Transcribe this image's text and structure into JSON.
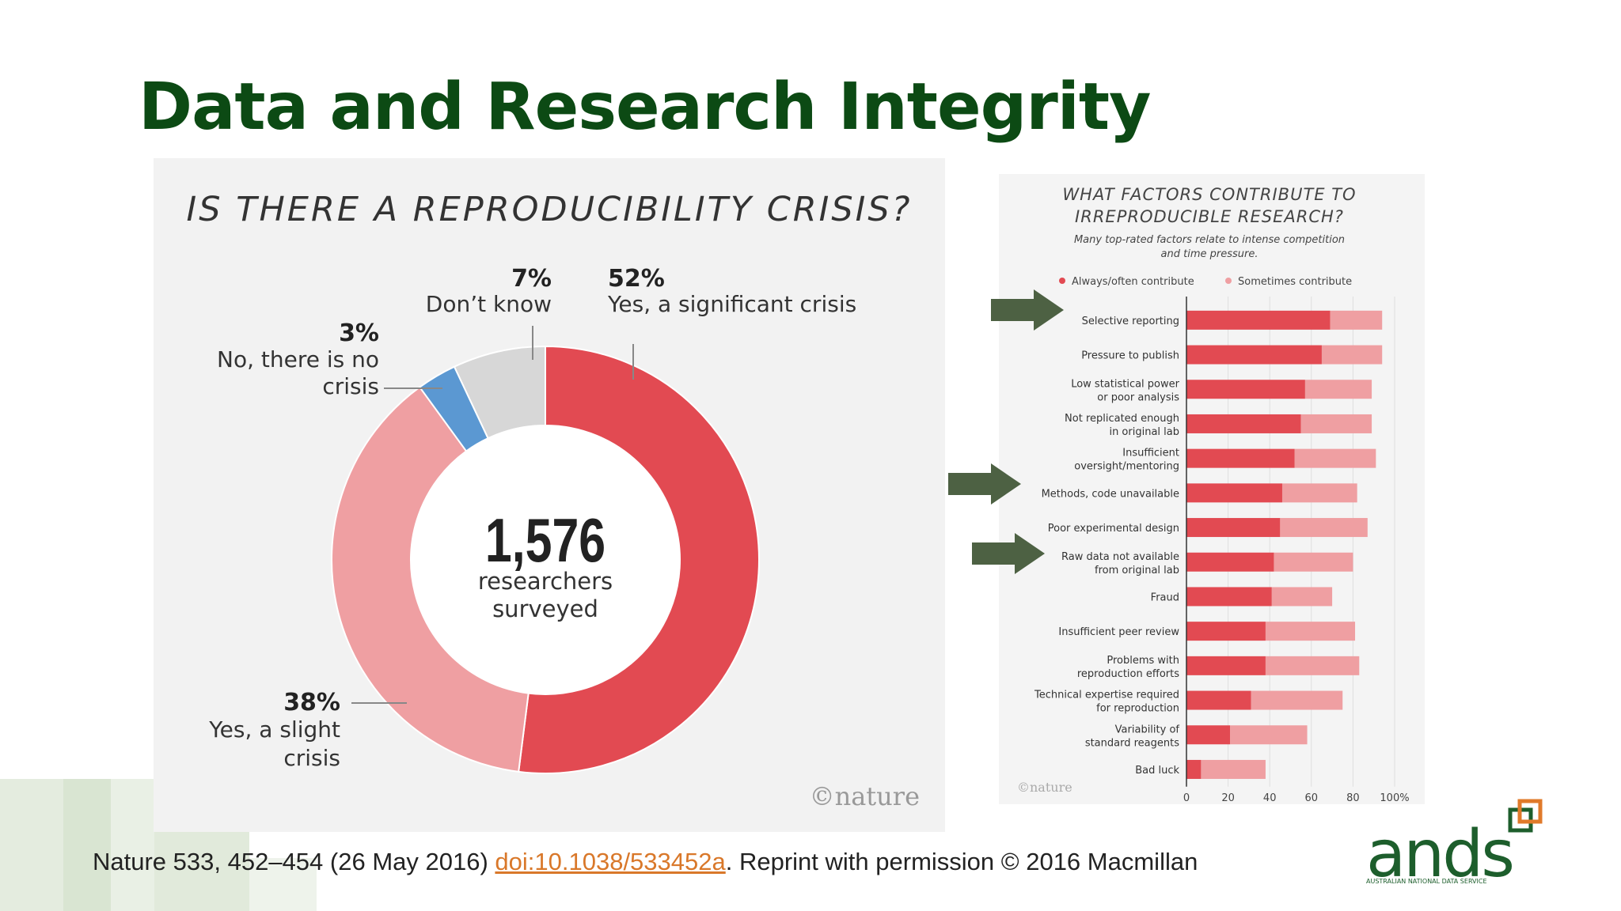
{
  "title": "Data and Research Integrity",
  "left_chart": {
    "heading": "IS THERE A REPRODUCIBILITY CRISIS?",
    "center_number": "1,576",
    "center_line1": "researchers",
    "center_line2": "surveyed",
    "brand": "©nature",
    "labels": {
      "significant_pct": "52%",
      "significant_text": "Yes, a significant crisis",
      "slight_pct": "38%",
      "slight_text1": "Yes, a slight",
      "slight_text2": "crisis",
      "no_pct": "3%",
      "no_text1": "No, there is no",
      "no_text2": "crisis",
      "dontknow_pct": "7%",
      "dontknow_text": "Don’t know"
    }
  },
  "right_chart": {
    "heading1": "WHAT FACTORS CONTRIBUTE TO",
    "heading2": "IRREPRODUCIBLE RESEARCH?",
    "subtitle1": "Many top-rated factors relate to intense competition",
    "subtitle2": "and time pressure.",
    "legend_always": "Always/often contribute",
    "legend_sometimes": "Sometimes contribute",
    "brand": "©nature",
    "factors": [
      {
        "line1": "Selective reporting",
        "line2": ""
      },
      {
        "line1": "Pressure to publish",
        "line2": ""
      },
      {
        "line1": "Low statistical power",
        "line2": "or poor analysis"
      },
      {
        "line1": "Not replicated enough",
        "line2": "in original lab"
      },
      {
        "line1": "Insufficient",
        "line2": "oversight/mentoring"
      },
      {
        "line1": "Methods, code unavailable",
        "line2": ""
      },
      {
        "line1": "Poor experimental design",
        "line2": ""
      },
      {
        "line1": "Raw data not available",
        "line2": "from original lab"
      },
      {
        "line1": "Fraud",
        "line2": ""
      },
      {
        "line1": "Insufficient peer review",
        "line2": ""
      },
      {
        "line1": "Problems with",
        "line2": "reproduction efforts"
      },
      {
        "line1": "Technical expertise required",
        "line2": "for reproduction"
      },
      {
        "line1": "Variability of",
        "line2": "standard reagents"
      },
      {
        "line1": "Bad luck",
        "line2": ""
      }
    ],
    "ticks": [
      "0",
      "20",
      "40",
      "60",
      "80",
      "100%"
    ]
  },
  "citation": {
    "before": "Nature 533, 452–454 (26 May 2016) ",
    "link": "doi:10.1038/533452a",
    "after": ".  Reprint with permission © 2016 Macmillan"
  },
  "logo": {
    "text": "ands",
    "tagline": "AUSTRALIAN NATIONAL DATA SERVICE"
  },
  "colors": {
    "title": "#0c4a14",
    "always": "#e24a52",
    "sometimes": "#ef9fa2",
    "no": "#5b98d2",
    "dontknow": "#d7d7d7",
    "arrow": "#4d6143",
    "logo_green": "#1d5e2c",
    "logo_orange": "#e07a2a"
  },
  "chart_data": [
    {
      "type": "pie",
      "title": "IS THERE A REPRODUCIBILITY CRISIS?",
      "categories": [
        "Yes, a significant crisis",
        "Yes, a slight crisis",
        "No, there is no crisis",
        "Don’t know"
      ],
      "values": [
        52,
        38,
        3,
        7
      ],
      "total_label": "1,576 researchers surveyed"
    },
    {
      "type": "bar",
      "title": "WHAT FACTORS CONTRIBUTE TO IRREPRODUCIBLE RESEARCH?",
      "categories": [
        "Selective reporting",
        "Pressure to publish",
        "Low statistical power or poor analysis",
        "Not replicated enough in original lab",
        "Insufficient oversight/mentoring",
        "Methods, code unavailable",
        "Poor experimental design",
        "Raw data not available from original lab",
        "Fraud",
        "Insufficient peer review",
        "Problems with reproduction efforts",
        "Technical expertise required for reproduction",
        "Variability of standard reagents",
        "Bad luck"
      ],
      "series": [
        {
          "name": "Always/often contribute",
          "values": [
            69,
            65,
            57,
            55,
            52,
            46,
            45,
            42,
            41,
            38,
            38,
            31,
            21,
            7
          ]
        },
        {
          "name": "Sometimes contribute",
          "values": [
            25,
            29,
            32,
            34,
            39,
            36,
            42,
            38,
            29,
            43,
            45,
            44,
            37,
            31
          ]
        }
      ],
      "stacked": true,
      "xlim": [
        0,
        100
      ],
      "highlighted": [
        "Selective reporting",
        "Methods, code unavailable",
        "Raw data not available from original lab"
      ]
    }
  ]
}
